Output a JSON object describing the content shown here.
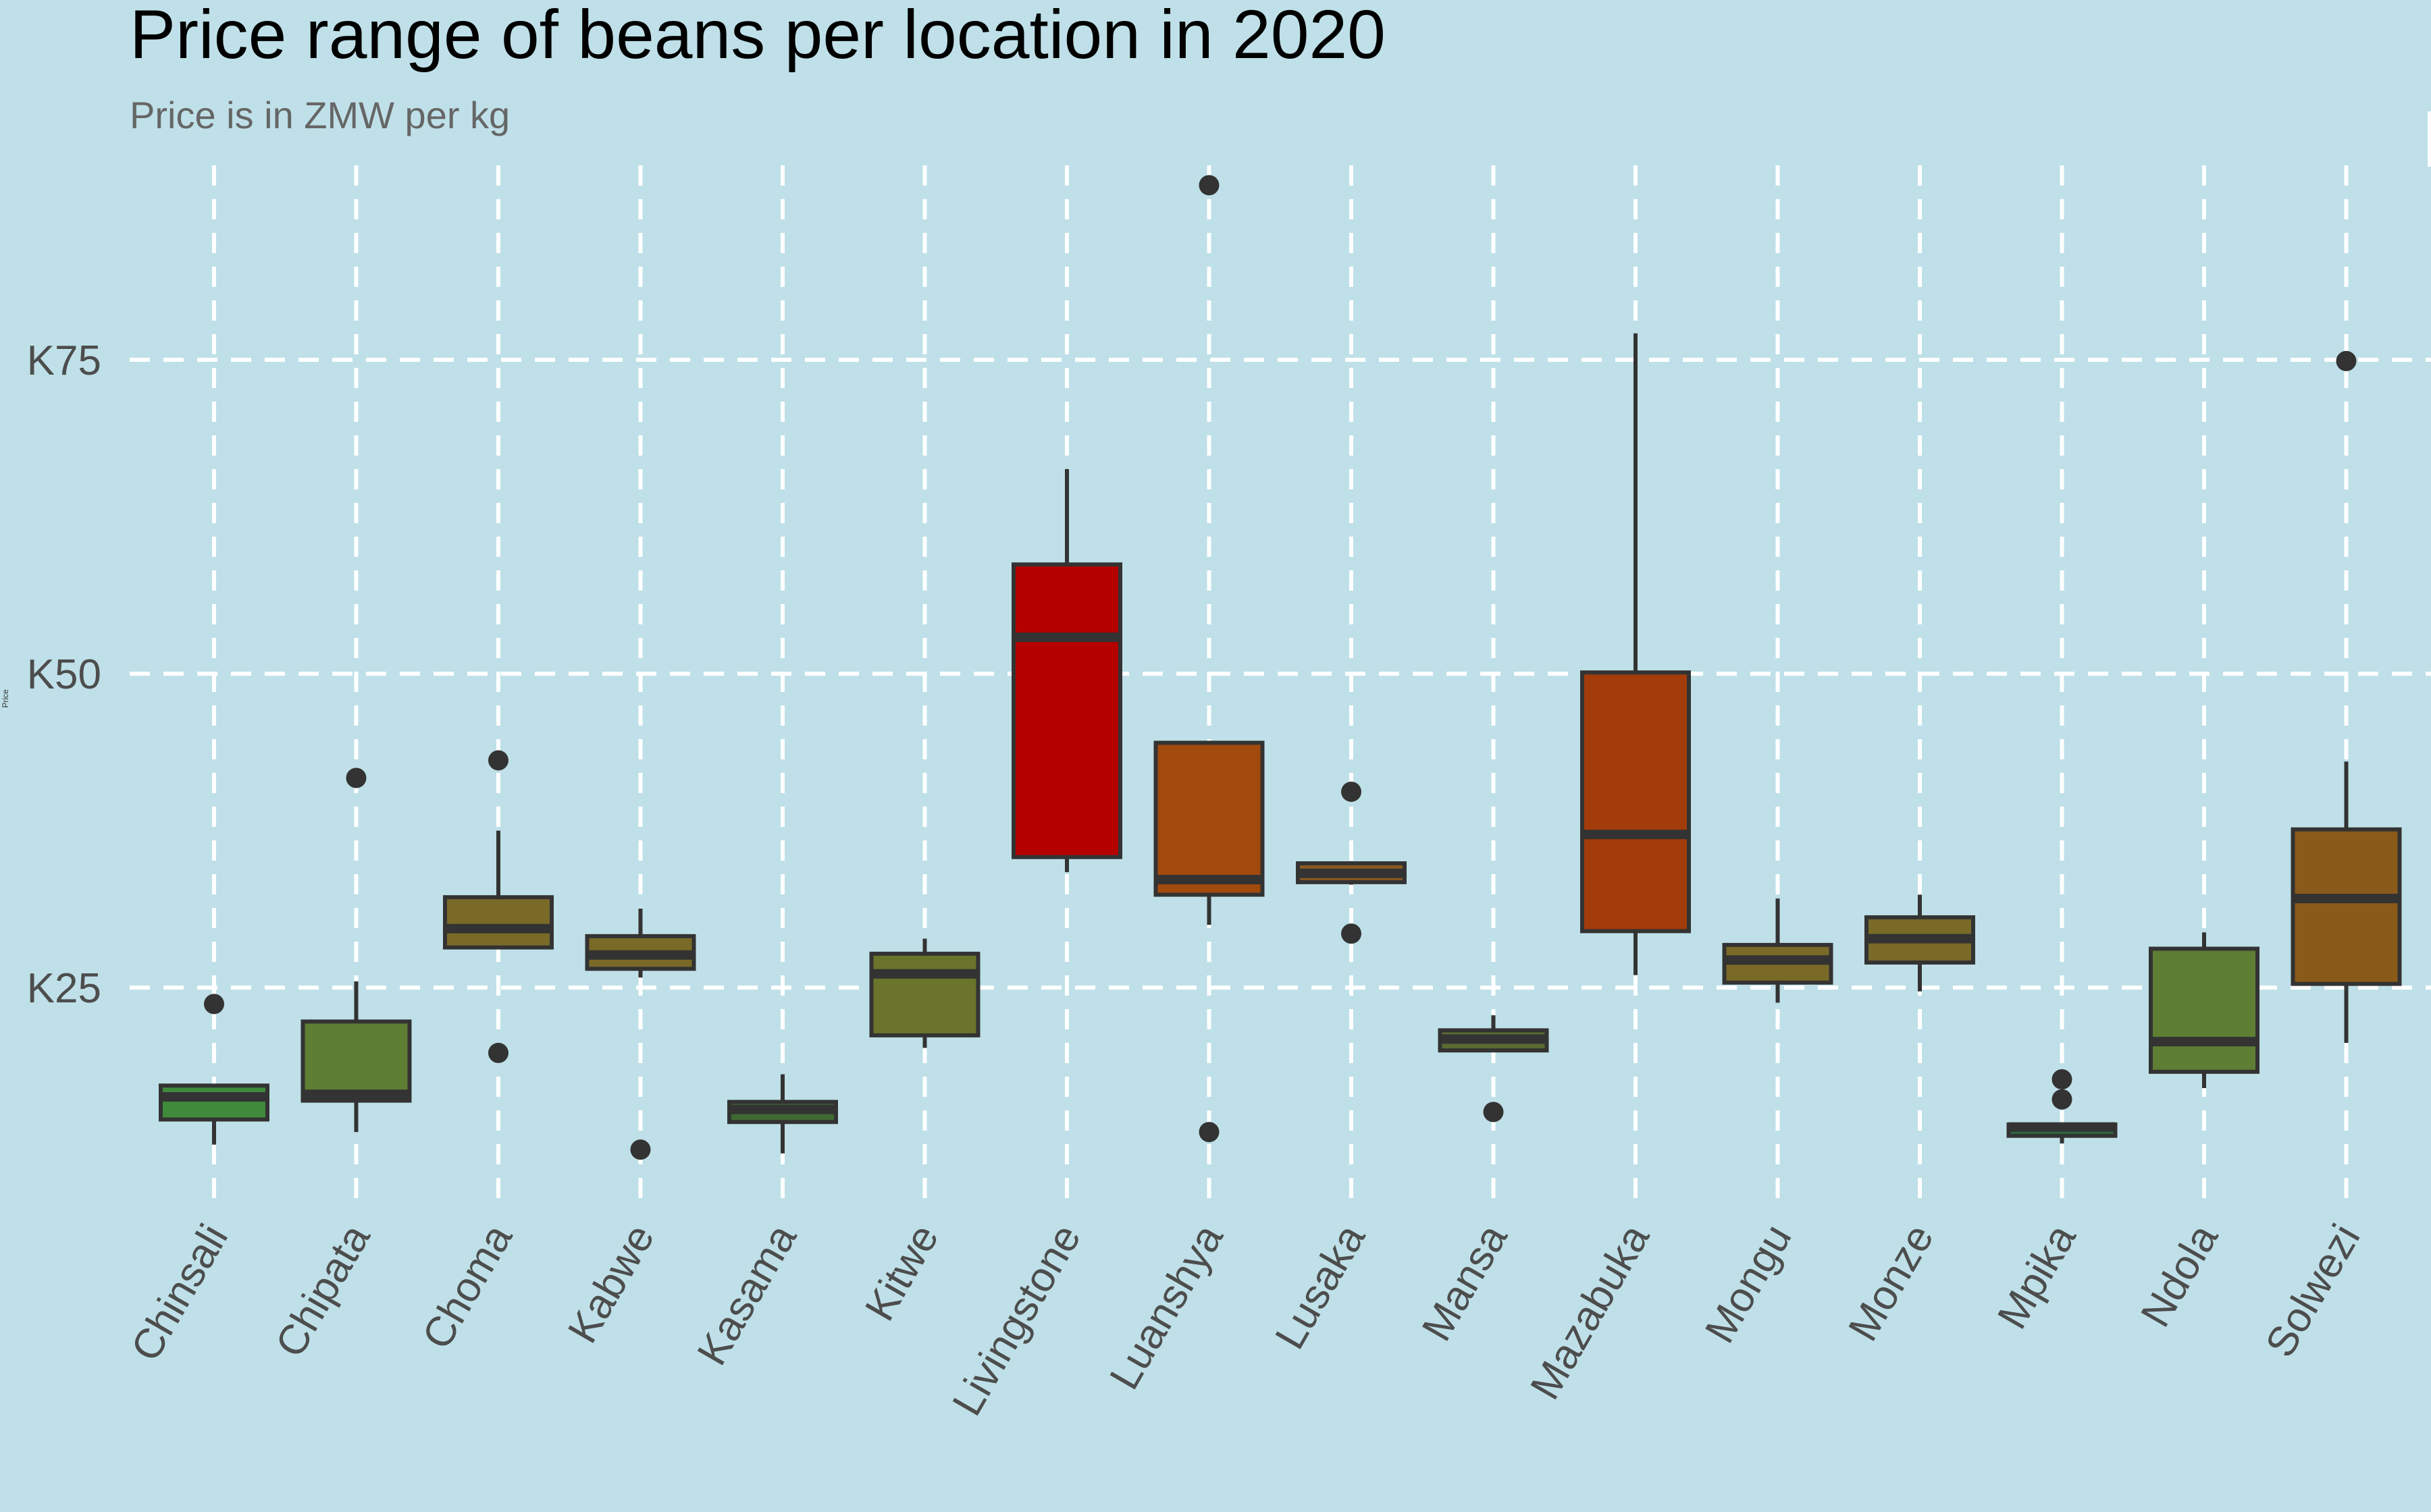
{
  "chart_data": {
    "type": "boxplot",
    "title": "Price range of beans per location in 2020",
    "subtitle": "Price is in ZMW per kg",
    "ylabel": "Price",
    "xlabel": "",
    "ylim": [
      7.7,
      92.9
    ],
    "yticks": [
      25,
      50,
      75
    ],
    "ytick_labels": [
      "K25",
      "K50",
      "K75"
    ],
    "grid": true,
    "colors": {
      "background": "#bfe0e8",
      "grid": "#ffffff",
      "outline": "#333333"
    },
    "categories": [
      "Chinsali",
      "Chipata",
      "Choma",
      "Kabwe",
      "Kasama",
      "Kitwe",
      "Livingstone",
      "Luanshya",
      "Lusaka",
      "Mansa",
      "Mazabuka",
      "Mongu",
      "Monze",
      "Mpika",
      "Ndola",
      "Solwezi"
    ],
    "boxes": [
      {
        "name": "Chinsali",
        "whisker_low": 12.5,
        "q1": 14.5,
        "median": 16.3,
        "q3": 17.2,
        "whisker_high": 17.2,
        "outliers": [
          23.7
        ],
        "fill": "#3f8a3b"
      },
      {
        "name": "Chipata",
        "whisker_low": 13.5,
        "q1": 16,
        "median": 16.5,
        "q3": 22.3,
        "whisker_high": 25.5,
        "outliers": [
          41.7
        ],
        "fill": "#5e7e33"
      },
      {
        "name": "Choma",
        "whisker_low": 28.2,
        "q1": 28.2,
        "median": 29.7,
        "q3": 32.2,
        "whisker_high": 37.5,
        "outliers": [
          43.1,
          19.8
        ],
        "fill": "#7a6a28"
      },
      {
        "name": "Kabwe",
        "whisker_low": 25.8,
        "q1": 26.5,
        "median": 27.6,
        "q3": 29.1,
        "whisker_high": 31.3,
        "outliers": [
          12.1
        ],
        "fill": "#7a6a28"
      },
      {
        "name": "Kasama",
        "whisker_low": 11.8,
        "q1": 14.3,
        "median": 15.3,
        "q3": 15.9,
        "whisker_high": 18.1,
        "outliers": [],
        "fill": "#3f6a33"
      },
      {
        "name": "Kitwe",
        "whisker_low": 20.2,
        "q1": 21.2,
        "median": 26.1,
        "q3": 27.7,
        "whisker_high": 28.9,
        "outliers": [],
        "fill": "#6a742a"
      },
      {
        "name": "Livingstone",
        "whisker_low": 34.2,
        "q1": 35.4,
        "median": 52.9,
        "q3": 58.7,
        "whisker_high": 66.3,
        "outliers": [],
        "fill": "#b50000"
      },
      {
        "name": "Luanshya",
        "whisker_low": 30,
        "q1": 32.4,
        "median": 33.6,
        "q3": 44.5,
        "whisker_high": 44.5,
        "outliers": [
          88.9,
          13.5
        ],
        "fill": "#a24a0d"
      },
      {
        "name": "Lusaka",
        "whisker_low": 33.2,
        "q1": 33.4,
        "median": 34.1,
        "q3": 34.9,
        "whisker_high": 34.9,
        "outliers": [
          40.6,
          29.3
        ],
        "fill": "#8a5a22"
      },
      {
        "name": "Mansa",
        "whisker_low": 20,
        "q1": 20,
        "median": 20.9,
        "q3": 21.6,
        "whisker_high": 22.8,
        "outliers": [
          15.1
        ],
        "fill": "#5a6a33"
      },
      {
        "name": "Mazabuka",
        "whisker_low": 26,
        "q1": 29.5,
        "median": 37.2,
        "q3": 50.1,
        "whisker_high": 77.1,
        "outliers": [],
        "fill": "#a23c0a"
      },
      {
        "name": "Mongu",
        "whisker_low": 23.8,
        "q1": 25.4,
        "median": 27.2,
        "q3": 28.4,
        "whisker_high": 32.1,
        "outliers": [],
        "fill": "#7a6a28"
      },
      {
        "name": "Monze",
        "whisker_low": 24.7,
        "q1": 27,
        "median": 28.9,
        "q3": 30.6,
        "whisker_high": 32.4,
        "outliers": [],
        "fill": "#7a6a28"
      },
      {
        "name": "Mpika",
        "whisker_low": 12.6,
        "q1": 13.2,
        "median": 13.9,
        "q3": 14.1,
        "whisker_high": 14.1,
        "outliers": [
          17.7,
          16.1
        ],
        "fill": "#2f6a40"
      },
      {
        "name": "Ndola",
        "whisker_low": 17,
        "q1": 18.3,
        "median": 20.7,
        "q3": 28.1,
        "whisker_high": 29.4,
        "outliers": [],
        "fill": "#5e7e33"
      },
      {
        "name": "Solwezi",
        "whisker_low": 20.6,
        "q1": 25.3,
        "median": 32.1,
        "q3": 37.6,
        "whisker_high": 43,
        "outliers": [
          74.9
        ],
        "fill": "#8a5a1a"
      }
    ]
  }
}
